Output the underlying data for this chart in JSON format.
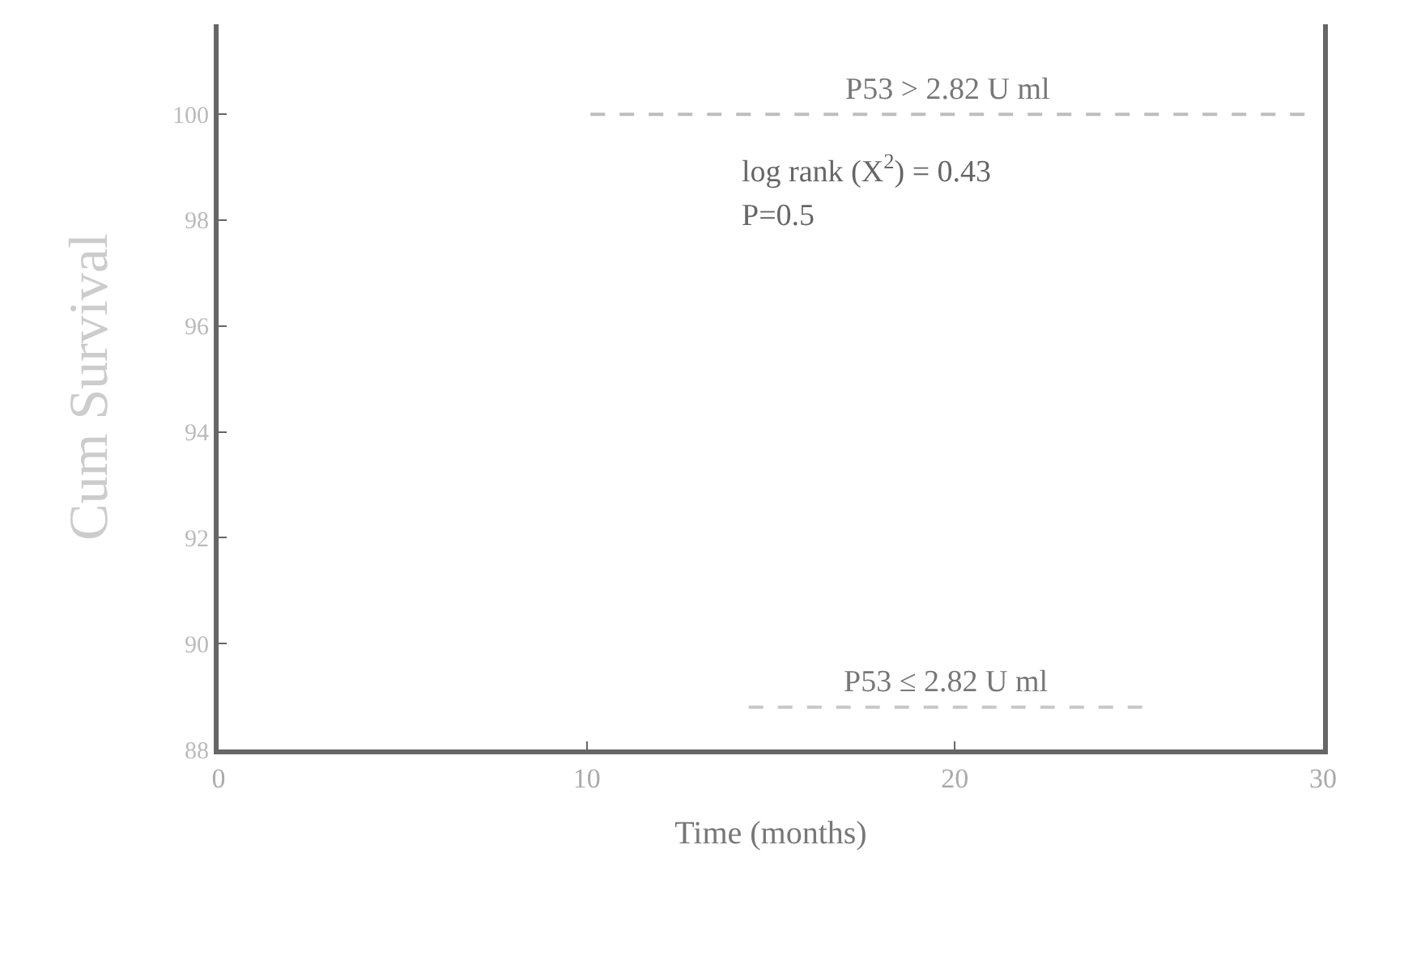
{
  "chart_data": {
    "type": "step",
    "xlabel": "Time (months)",
    "ylabel": "Cum Survival",
    "xlim": [
      0,
      30
    ],
    "xticks": [
      0,
      10,
      20,
      30
    ],
    "ylim": [
      88,
      101.7
    ],
    "yticks": [
      88,
      90,
      92,
      94,
      96,
      98,
      100
    ],
    "series": [
      {
        "name": "P53 > 2.82 U ml",
        "color": "#bdbdbd",
        "x": [
          10.1,
          29.5
        ],
        "values": [
          100,
          100
        ]
      },
      {
        "name": "P53 ≤ 2.82 U ml",
        "color": "#c8c8c8",
        "x": [
          14.4,
          25.1
        ],
        "values": [
          88.8,
          88.8
        ]
      }
    ],
    "line_style": "dashed",
    "marker": "none",
    "grid": false,
    "legend": false,
    "annotations": [
      "log rank (X$^{2}$) = 0.43",
      "P=0.5"
    ]
  }
}
